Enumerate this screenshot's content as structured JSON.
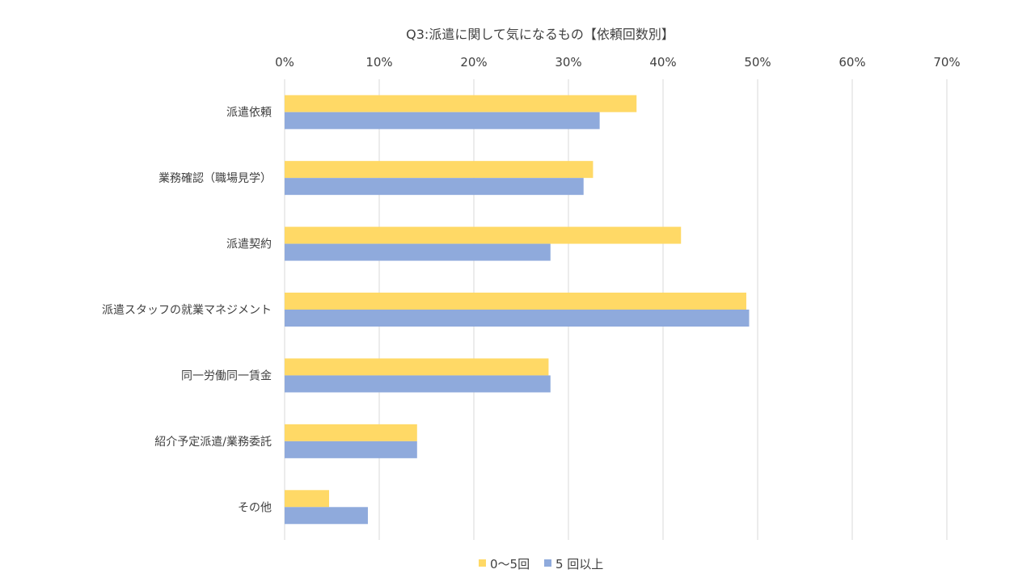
{
  "chart_data": {
    "type": "bar",
    "orientation": "horizontal",
    "title": "Q3:派遣に関して気になるもの【依頼回数別】",
    "categories": [
      "派遣依頼",
      "業務確認（職場見学）",
      "派遣契約",
      "派遣スタッフの就業マネジメント",
      "同一労働同一賃金",
      "紹介予定派遣/業務委託",
      "その他"
    ],
    "series": [
      {
        "name": "0～5回",
        "color": "#FFD966",
        "values": [
          37.2,
          32.6,
          41.9,
          48.8,
          27.9,
          14.0,
          4.7
        ]
      },
      {
        "name": "5 回以上",
        "color": "#8FAADC",
        "values": [
          33.3,
          31.6,
          28.1,
          49.1,
          28.1,
          14.0,
          8.8
        ]
      }
    ],
    "x_unit": "%",
    "xlim": [
      0,
      70
    ],
    "x_ticks": [
      "0%",
      "10%",
      "20%",
      "30%",
      "40%",
      "50%",
      "60%",
      "70%"
    ],
    "xlabel": "",
    "ylabel": "",
    "grid": true,
    "axis_position": "top",
    "legend_position": "bottom"
  }
}
